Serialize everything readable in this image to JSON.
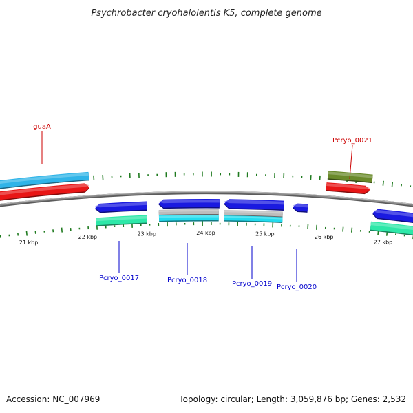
{
  "title": "Psychrobacter cryohalolentis K5, complete genome",
  "footer": {
    "accession": "Accession: NC_007969",
    "summary": "Topology: circular; Length: 3,059,876 bp; Genes: 2,532"
  },
  "ticks": [
    {
      "kbp": 21,
      "label": "21 kbp"
    },
    {
      "kbp": 22,
      "label": "22 kbp"
    },
    {
      "kbp": 23,
      "label": "23 kbp"
    },
    {
      "kbp": 24,
      "label": "24 kbp"
    },
    {
      "kbp": 25,
      "label": "25 kbp"
    },
    {
      "kbp": 26,
      "label": "26 kbp"
    },
    {
      "kbp": 27,
      "label": "27 kbp"
    }
  ],
  "labels": [
    {
      "name": "guaA",
      "color": "#cc0000"
    },
    {
      "name": "Pcryo_0021",
      "color": "#cc0000"
    },
    {
      "name": "Pcryo_0017",
      "color": "#0000cc"
    },
    {
      "name": "Pcryo_0018",
      "color": "#0000cc"
    },
    {
      "name": "Pcryo_0019",
      "color": "#0000cc"
    },
    {
      "name": "Pcryo_0020",
      "color": "#0000cc"
    }
  ],
  "colors": {
    "backbone": "#8a8a8a",
    "tick": "#1f7a1f",
    "forward_feature": "#2fb4e8",
    "forward_cds": "#e81616",
    "reverse_cds": "#1a1ae0",
    "reverse_feature_green": "#2de8a8",
    "reverse_feature_cyan": "#22dcee",
    "reverse_feature_grey": "#bcbcbc",
    "olive_feature": "#6a8a2a"
  }
}
